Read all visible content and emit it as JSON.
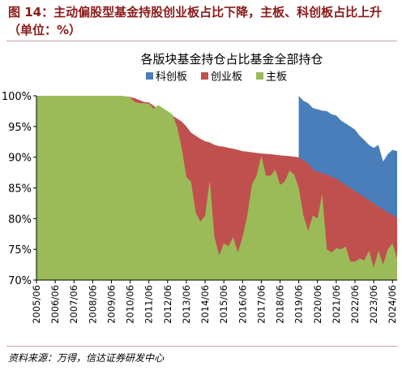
{
  "figure": {
    "caption": "图 14：主动偏股型基金持股创业板占比下降，主板、科创板占比上升（单位：%）",
    "source": "资料来源：万得，信达证券研发中心"
  },
  "colors": {
    "kechuang": "#4a7ebb",
    "chuangye": "#c0504d",
    "zhuban": "#9bbb59",
    "caption": "#8b1a1a"
  },
  "chart_data": {
    "type": "area",
    "stacked": true,
    "title": "各版块基金持仓占比基金全部持仓",
    "legend_position": "top",
    "grid": false,
    "xlabel": "",
    "ylabel": "",
    "ylim": [
      70,
      100
    ],
    "y_ticks": [
      "100%",
      "95%",
      "90%",
      "85%",
      "80%",
      "75%",
      "70%"
    ],
    "x_ticks": [
      "2005/06",
      "2006/06",
      "2007/06",
      "2008/06",
      "2009/06",
      "2010/06",
      "2011/06",
      "2012/06",
      "2013/06",
      "2014/06",
      "2015/06",
      "2016/06",
      "2017/06",
      "2018/06",
      "2019/06",
      "2020/06",
      "2021/06",
      "2022/06",
      "2023/06",
      "2024/06"
    ],
    "series": [
      {
        "name": "科创板",
        "points": [
          [
            2019.5,
            100
          ],
          [
            2019.75,
            99.2
          ],
          [
            2020.0,
            98.8
          ],
          [
            2020.25,
            98.0
          ],
          [
            2020.5,
            97.8
          ],
          [
            2020.75,
            97.6
          ],
          [
            2021.0,
            97.5
          ],
          [
            2021.25,
            97.0
          ],
          [
            2021.5,
            96.8
          ],
          [
            2021.75,
            96.0
          ],
          [
            2022.0,
            95.5
          ],
          [
            2022.25,
            95.0
          ],
          [
            2022.5,
            94.5
          ],
          [
            2022.75,
            93.5
          ],
          [
            2023.0,
            92.8
          ],
          [
            2023.25,
            92.0
          ],
          [
            2023.5,
            91.5
          ],
          [
            2023.75,
            92.0
          ],
          [
            2024.0,
            89.3
          ],
          [
            2024.25,
            90.5
          ],
          [
            2024.5,
            91.2
          ],
          [
            2024.75,
            91.0
          ]
        ]
      },
      {
        "name": "创业板",
        "points": [
          [
            2005.5,
            100
          ],
          [
            2006.0,
            100
          ],
          [
            2008.0,
            100
          ],
          [
            2009.5,
            100
          ],
          [
            2010.0,
            100
          ],
          [
            2010.25,
            99.9
          ],
          [
            2010.5,
            99.8
          ],
          [
            2010.75,
            99.6
          ],
          [
            2011.0,
            99.3
          ],
          [
            2011.25,
            99.0
          ],
          [
            2011.5,
            98.9
          ],
          [
            2011.75,
            98.4
          ],
          [
            2012.0,
            97.8
          ],
          [
            2012.25,
            97.6
          ],
          [
            2012.5,
            97.4
          ],
          [
            2012.75,
            96.8
          ],
          [
            2013.0,
            96.3
          ],
          [
            2013.25,
            95.8
          ],
          [
            2013.5,
            95.0
          ],
          [
            2013.75,
            94.0
          ],
          [
            2014.0,
            93.5
          ],
          [
            2014.25,
            93.0
          ],
          [
            2014.5,
            92.6
          ],
          [
            2014.75,
            92.4
          ],
          [
            2015.0,
            92.0
          ],
          [
            2015.25,
            91.8
          ],
          [
            2015.5,
            91.7
          ],
          [
            2015.75,
            91.5
          ],
          [
            2016.0,
            91.4
          ],
          [
            2016.25,
            91.2
          ],
          [
            2016.5,
            91.0
          ],
          [
            2016.75,
            90.9
          ],
          [
            2017.0,
            90.8
          ],
          [
            2017.5,
            90.6
          ],
          [
            2018.0,
            90.5
          ],
          [
            2018.5,
            90.3
          ],
          [
            2019.0,
            90.2
          ],
          [
            2019.5,
            90.0
          ],
          [
            2019.75,
            89.5
          ],
          [
            2020.0,
            89.0
          ],
          [
            2020.25,
            88.0
          ],
          [
            2020.5,
            87.6
          ],
          [
            2020.75,
            87.4
          ],
          [
            2021.0,
            87.2
          ],
          [
            2021.25,
            86.8
          ],
          [
            2021.5,
            86.5
          ],
          [
            2021.75,
            86.0
          ],
          [
            2022.0,
            85.5
          ],
          [
            2022.25,
            85.0
          ],
          [
            2022.5,
            84.5
          ],
          [
            2022.75,
            84.0
          ],
          [
            2023.0,
            83.5
          ],
          [
            2023.25,
            83.0
          ],
          [
            2023.5,
            82.5
          ],
          [
            2023.75,
            82.0
          ],
          [
            2024.0,
            81.5
          ],
          [
            2024.25,
            81.0
          ],
          [
            2024.5,
            80.6
          ],
          [
            2024.75,
            80.2
          ]
        ]
      },
      {
        "name": "主板",
        "points": [
          [
            2005.5,
            100
          ],
          [
            2006.0,
            100
          ],
          [
            2008.0,
            100
          ],
          [
            2009.5,
            100
          ],
          [
            2010.0,
            100
          ],
          [
            2010.25,
            99.9
          ],
          [
            2010.5,
            99.7
          ],
          [
            2010.75,
            99.0
          ],
          [
            2011.0,
            98.8
          ],
          [
            2011.25,
            98.8
          ],
          [
            2011.5,
            98.7
          ],
          [
            2011.75,
            97.9
          ],
          [
            2012.0,
            98.5
          ],
          [
            2012.25,
            98.0
          ],
          [
            2012.5,
            97.5
          ],
          [
            2012.75,
            97.0
          ],
          [
            2013.0,
            95.0
          ],
          [
            2013.25,
            91.5
          ],
          [
            2013.5,
            86.8
          ],
          [
            2013.75,
            86.0
          ],
          [
            2014.0,
            81.0
          ],
          [
            2014.25,
            79.5
          ],
          [
            2014.5,
            80.5
          ],
          [
            2014.75,
            86.2
          ],
          [
            2015.0,
            77.0
          ],
          [
            2015.25,
            74.0
          ],
          [
            2015.5,
            76.0
          ],
          [
            2015.75,
            75.5
          ],
          [
            2016.0,
            77.0
          ],
          [
            2016.25,
            74.5
          ],
          [
            2016.5,
            77.0
          ],
          [
            2016.75,
            80.5
          ],
          [
            2017.0,
            85.5
          ],
          [
            2017.25,
            87.0
          ],
          [
            2017.5,
            90.2
          ],
          [
            2017.75,
            87.0
          ],
          [
            2018.0,
            87.0
          ],
          [
            2018.25,
            88.0
          ],
          [
            2018.5,
            85.5
          ],
          [
            2018.75,
            86.0
          ],
          [
            2019.0,
            87.8
          ],
          [
            2019.25,
            87.2
          ],
          [
            2019.5,
            85.0
          ],
          [
            2019.75,
            80.5
          ],
          [
            2020.0,
            78.0
          ],
          [
            2020.25,
            80.5
          ],
          [
            2020.5,
            80.0
          ],
          [
            2020.75,
            84.0
          ],
          [
            2021.0,
            75.0
          ],
          [
            2021.25,
            74.5
          ],
          [
            2021.5,
            75.2
          ],
          [
            2021.75,
            75.0
          ],
          [
            2022.0,
            75.5
          ],
          [
            2022.25,
            73.0
          ],
          [
            2022.5,
            73.0
          ],
          [
            2022.75,
            73.5
          ],
          [
            2023.0,
            73.2
          ],
          [
            2023.25,
            74.8
          ],
          [
            2023.5,
            72.0
          ],
          [
            2023.75,
            74.8
          ],
          [
            2024.0,
            72.5
          ],
          [
            2024.25,
            75.0
          ],
          [
            2024.5,
            76.0
          ],
          [
            2024.75,
            73.5
          ]
        ]
      }
    ]
  }
}
